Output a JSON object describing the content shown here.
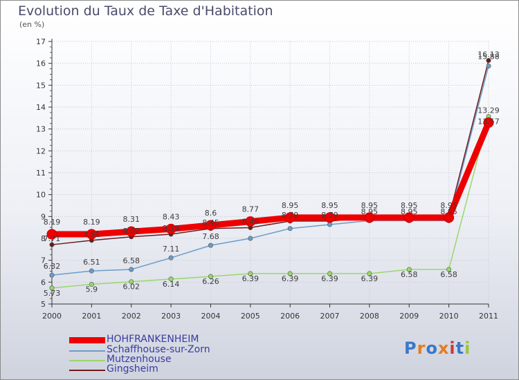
{
  "title": "Evolution du Taux de Taxe d'Habitation",
  "subtitle": "(en %)",
  "logo_text": "Proxiti",
  "chart_data": {
    "type": "line",
    "title": "Evolution du Taux de Taxe d'Habitation",
    "ylabel": "(en %)",
    "xlabel": "",
    "ylim": [
      5,
      17
    ],
    "yticks": [
      5,
      6,
      7,
      8,
      9,
      10,
      11,
      12,
      13,
      14,
      15,
      16,
      17
    ],
    "categories": [
      "2000",
      "2001",
      "2002",
      "2003",
      "2004",
      "2005",
      "2006",
      "2007",
      "2008",
      "2009",
      "2010",
      "2011"
    ],
    "series": [
      {
        "name": "HOHFRANKENHEIM",
        "color": "#ee0000",
        "values": [
          8.19,
          8.19,
          8.31,
          8.43,
          8.6,
          8.77,
          8.95,
          8.95,
          8.95,
          8.95,
          8.95,
          13.29
        ],
        "labels": [
          "8.19",
          "8.19",
          "8.31",
          "8.43",
          "8.6",
          "8.77",
          "8.95",
          "8.95",
          "8.95",
          "8.95",
          "8.95",
          "13.29"
        ]
      },
      {
        "name": "Schaffhouse-sur-Zorn",
        "color": "#6a9cc8",
        "values": [
          6.32,
          6.51,
          6.58,
          7.11,
          7.68,
          8.0,
          8.45,
          8.63,
          8.81,
          8.81,
          8.81,
          15.88
        ],
        "labels": [
          "6.32",
          "6.51",
          "6.58",
          "7.11",
          "7.68",
          "",
          "",
          "",
          "",
          "",
          "",
          "15.88"
        ]
      },
      {
        "name": "Mutzenhouse",
        "color": "#99d76a",
        "values": [
          5.73,
          5.9,
          6.02,
          6.14,
          6.26,
          6.39,
          6.39,
          6.39,
          6.39,
          6.58,
          6.58,
          13.57
        ],
        "labels": [
          "5.73",
          "5.9",
          "6.02",
          "6.14",
          "6.26",
          "6.39",
          "6.39",
          "6.39",
          "6.39",
          "6.58",
          "6.58",
          "13.57"
        ]
      },
      {
        "name": "Gingsheim",
        "color": "#6b1a1a",
        "values": [
          7.71,
          7.91,
          8.07,
          8.19,
          8.45,
          8.49,
          8.79,
          8.79,
          8.95,
          8.95,
          8.95,
          16.13
        ],
        "labels": [
          "7.71",
          "7.91",
          "8.07",
          "8.19",
          "8.45",
          "8.49",
          "8.79",
          "8.79",
          "8.95",
          "8.95",
          "8.95",
          "16.13"
        ]
      }
    ]
  }
}
